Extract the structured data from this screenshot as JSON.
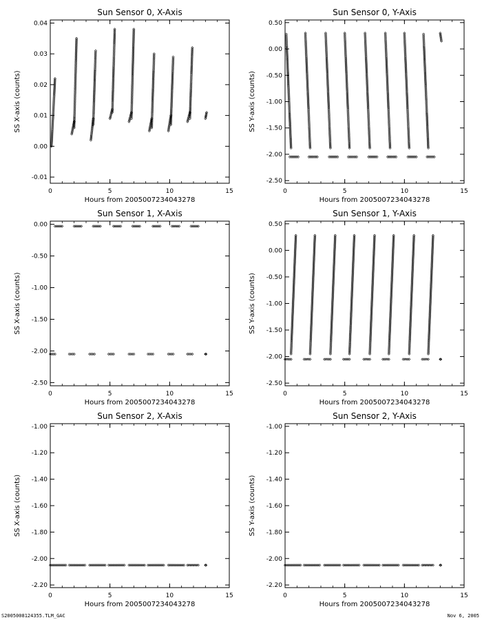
{
  "footer": {
    "left": "S2005008124355.TLM_GAC",
    "right": "Nov 6, 2005"
  },
  "chart_data": [
    {
      "type": "scatter",
      "title": "Sun Sensor 0, X-Axis",
      "xlabel": "Hours from 2005007234043278",
      "ylabel": "SS X-axis (counts)",
      "xlim": [
        0,
        15
      ],
      "ylim": [
        -0.012,
        0.041
      ],
      "xticks": [
        0,
        5,
        10,
        15
      ],
      "xtick_labels": [
        "0",
        "5",
        "10",
        "15"
      ],
      "yticks": [
        -0.01,
        0.0,
        0.01,
        0.02,
        0.03,
        0.04
      ],
      "ytick_labels": [
        "-0.01",
        "0.00",
        "0.01",
        "0.02",
        "0.03",
        "0.04"
      ],
      "grid": false,
      "segments": [
        {
          "x": [
            0.1,
            0.4
          ],
          "y": [
            0.0,
            0.022
          ]
        },
        {
          "x": [
            1.8,
            2.0
          ],
          "y": [
            0.004,
            0.008
          ]
        },
        {
          "x": [
            2.0,
            2.2
          ],
          "y": [
            0.006,
            0.035
          ]
        },
        {
          "x": [
            3.4,
            3.6
          ],
          "y": [
            0.002,
            0.009
          ]
        },
        {
          "x": [
            3.6,
            3.8
          ],
          "y": [
            0.007,
            0.031
          ]
        },
        {
          "x": [
            5.0,
            5.2
          ],
          "y": [
            0.009,
            0.012
          ]
        },
        {
          "x": [
            5.2,
            5.4
          ],
          "y": [
            0.011,
            0.038
          ]
        },
        {
          "x": [
            6.6,
            6.8
          ],
          "y": [
            0.008,
            0.011
          ]
        },
        {
          "x": [
            6.8,
            7.0
          ],
          "y": [
            0.009,
            0.038
          ]
        },
        {
          "x": [
            8.3,
            8.5
          ],
          "y": [
            0.005,
            0.009
          ]
        },
        {
          "x": [
            8.5,
            8.7
          ],
          "y": [
            0.006,
            0.03
          ]
        },
        {
          "x": [
            9.9,
            10.1
          ],
          "y": [
            0.005,
            0.01
          ]
        },
        {
          "x": [
            10.1,
            10.3
          ],
          "y": [
            0.007,
            0.029
          ]
        },
        {
          "x": [
            11.5,
            11.7
          ],
          "y": [
            0.008,
            0.011
          ]
        },
        {
          "x": [
            11.7,
            11.9
          ],
          "y": [
            0.009,
            0.032
          ]
        },
        {
          "x": [
            13.0,
            13.1
          ],
          "y": [
            0.009,
            0.011
          ]
        }
      ]
    },
    {
      "type": "scatter",
      "title": "Sun Sensor 0, Y-Axis",
      "xlabel": "Hours from 2005007234043278",
      "ylabel": "SS Y-axis (counts)",
      "xlim": [
        0,
        15
      ],
      "ylim": [
        -2.55,
        0.55
      ],
      "xticks": [
        0,
        5,
        10,
        15
      ],
      "xtick_labels": [
        "0",
        "5",
        "10",
        "15"
      ],
      "yticks": [
        -2.5,
        -2.0,
        -1.5,
        -1.0,
        -0.5,
        0.0,
        0.5
      ],
      "ytick_labels": [
        "-2.50",
        "-2.00",
        "-1.50",
        "-1.00",
        "-0.50",
        "0.00",
        "0.50"
      ],
      "grid": false,
      "segments": [
        {
          "x": [
            0.1,
            0.5
          ],
          "y": [
            0.28,
            -1.88
          ]
        },
        {
          "x": [
            1.7,
            2.1
          ],
          "y": [
            0.3,
            -1.88
          ]
        },
        {
          "x": [
            3.4,
            3.8
          ],
          "y": [
            0.3,
            -1.88
          ]
        },
        {
          "x": [
            5.0,
            5.4
          ],
          "y": [
            0.3,
            -1.88
          ]
        },
        {
          "x": [
            6.7,
            7.1
          ],
          "y": [
            0.3,
            -1.88
          ]
        },
        {
          "x": [
            8.4,
            8.8
          ],
          "y": [
            0.3,
            -1.88
          ]
        },
        {
          "x": [
            10.0,
            10.4
          ],
          "y": [
            0.3,
            -1.88
          ]
        },
        {
          "x": [
            11.6,
            12.0
          ],
          "y": [
            0.28,
            -1.88
          ]
        },
        {
          "x": [
            13.0,
            13.1
          ],
          "y": [
            0.3,
            0.15
          ]
        },
        {
          "x": [
            0.4,
            1.1
          ],
          "y": [
            -2.05,
            -2.05
          ]
        },
        {
          "x": [
            2.0,
            2.7
          ],
          "y": [
            -2.05,
            -2.05
          ]
        },
        {
          "x": [
            3.7,
            4.4
          ],
          "y": [
            -2.05,
            -2.05
          ]
        },
        {
          "x": [
            5.3,
            6.0
          ],
          "y": [
            -2.05,
            -2.05
          ]
        },
        {
          "x": [
            7.0,
            7.7
          ],
          "y": [
            -2.05,
            -2.05
          ]
        },
        {
          "x": [
            8.6,
            9.3
          ],
          "y": [
            -2.05,
            -2.05
          ]
        },
        {
          "x": [
            10.3,
            11.0
          ],
          "y": [
            -2.05,
            -2.05
          ]
        },
        {
          "x": [
            11.9,
            12.5
          ],
          "y": [
            -2.05,
            -2.05
          ]
        }
      ]
    },
    {
      "type": "scatter",
      "title": "Sun Sensor 1, X-Axis",
      "xlabel": "Hours from 2005007234043278",
      "ylabel": "SS X-axis (counts)",
      "xlim": [
        0,
        15
      ],
      "ylim": [
        -2.55,
        0.05
      ],
      "xticks": [
        0,
        5,
        10,
        15
      ],
      "xtick_labels": [
        "0",
        "5",
        "10",
        "15"
      ],
      "yticks": [
        -2.5,
        -2.0,
        -1.5,
        -1.0,
        -0.5,
        0.0
      ],
      "ytick_labels": [
        "-2.50",
        "-2.00",
        "-1.50",
        "-1.00",
        "-0.50",
        "0.00"
      ],
      "grid": false,
      "segments": [
        {
          "x": [
            0.4,
            1.0
          ],
          "y": [
            -0.03,
            -0.03
          ]
        },
        {
          "x": [
            2.0,
            2.6
          ],
          "y": [
            -0.03,
            -0.03
          ]
        },
        {
          "x": [
            3.6,
            4.2
          ],
          "y": [
            -0.03,
            -0.03
          ]
        },
        {
          "x": [
            5.3,
            5.9
          ],
          "y": [
            -0.03,
            -0.03
          ]
        },
        {
          "x": [
            6.9,
            7.5
          ],
          "y": [
            -0.03,
            -0.03
          ]
        },
        {
          "x": [
            8.6,
            9.2
          ],
          "y": [
            -0.03,
            -0.03
          ]
        },
        {
          "x": [
            10.2,
            10.8
          ],
          "y": [
            -0.03,
            -0.03
          ]
        },
        {
          "x": [
            11.8,
            12.4
          ],
          "y": [
            -0.03,
            -0.03
          ]
        },
        {
          "x": [
            0.0,
            0.4
          ],
          "y": [
            -2.05,
            -2.05
          ]
        },
        {
          "x": [
            1.6,
            2.0
          ],
          "y": [
            -2.05,
            -2.05
          ]
        },
        {
          "x": [
            3.3,
            3.7
          ],
          "y": [
            -2.05,
            -2.05
          ]
        },
        {
          "x": [
            4.9,
            5.3
          ],
          "y": [
            -2.05,
            -2.05
          ]
        },
        {
          "x": [
            6.6,
            7.0
          ],
          "y": [
            -2.05,
            -2.05
          ]
        },
        {
          "x": [
            8.2,
            8.6
          ],
          "y": [
            -2.05,
            -2.05
          ]
        },
        {
          "x": [
            9.9,
            10.3
          ],
          "y": [
            -2.05,
            -2.05
          ]
        },
        {
          "x": [
            11.5,
            11.9
          ],
          "y": [
            -2.05,
            -2.05
          ]
        },
        {
          "x": [
            13.0,
            13.05
          ],
          "y": [
            -2.05,
            -2.05
          ]
        }
      ]
    },
    {
      "type": "scatter",
      "title": "Sun Sensor 1, Y-Axis",
      "xlabel": "Hours from 2005007234043278",
      "ylabel": "SS Y-axis (counts)",
      "xlim": [
        0,
        15
      ],
      "ylim": [
        -2.55,
        0.55
      ],
      "xticks": [
        0,
        5,
        10,
        15
      ],
      "xtick_labels": [
        "0",
        "5",
        "10",
        "15"
      ],
      "yticks": [
        -2.5,
        -2.0,
        -1.5,
        -1.0,
        -0.5,
        0.0,
        0.5
      ],
      "ytick_labels": [
        "-2.50",
        "-2.00",
        "-1.50",
        "-1.00",
        "-0.50",
        "0.00",
        "0.50"
      ],
      "grid": false,
      "segments": [
        {
          "x": [
            0.5,
            0.9
          ],
          "y": [
            -1.95,
            0.28
          ]
        },
        {
          "x": [
            2.1,
            2.5
          ],
          "y": [
            -1.95,
            0.28
          ]
        },
        {
          "x": [
            3.8,
            4.2
          ],
          "y": [
            -1.95,
            0.28
          ]
        },
        {
          "x": [
            5.4,
            5.8
          ],
          "y": [
            -1.95,
            0.28
          ]
        },
        {
          "x": [
            7.1,
            7.5
          ],
          "y": [
            -1.95,
            0.28
          ]
        },
        {
          "x": [
            8.7,
            9.1
          ],
          "y": [
            -1.95,
            0.28
          ]
        },
        {
          "x": [
            10.4,
            10.8
          ],
          "y": [
            -1.95,
            0.28
          ]
        },
        {
          "x": [
            12.0,
            12.4
          ],
          "y": [
            -1.95,
            0.28
          ]
        },
        {
          "x": [
            0.0,
            0.5
          ],
          "y": [
            -2.05,
            -2.05
          ]
        },
        {
          "x": [
            1.6,
            2.1
          ],
          "y": [
            -2.05,
            -2.05
          ]
        },
        {
          "x": [
            3.3,
            3.8
          ],
          "y": [
            -2.05,
            -2.05
          ]
        },
        {
          "x": [
            4.9,
            5.4
          ],
          "y": [
            -2.05,
            -2.05
          ]
        },
        {
          "x": [
            6.6,
            7.1
          ],
          "y": [
            -2.05,
            -2.05
          ]
        },
        {
          "x": [
            8.2,
            8.7
          ],
          "y": [
            -2.05,
            -2.05
          ]
        },
        {
          "x": [
            9.9,
            10.4
          ],
          "y": [
            -2.05,
            -2.05
          ]
        },
        {
          "x": [
            11.5,
            12.0
          ],
          "y": [
            -2.05,
            -2.05
          ]
        },
        {
          "x": [
            13.0,
            13.05
          ],
          "y": [
            -2.05,
            -2.05
          ]
        }
      ]
    },
    {
      "type": "scatter",
      "title": "Sun Sensor 2, X-Axis",
      "xlabel": "Hours from 2005007234043278",
      "ylabel": "SS X-axis (counts)",
      "xlim": [
        0,
        15
      ],
      "ylim": [
        -2.22,
        -0.98
      ],
      "xticks": [
        0,
        5,
        10,
        15
      ],
      "xtick_labels": [
        "0",
        "5",
        "10",
        "15"
      ],
      "yticks": [
        -2.2,
        -2.0,
        -1.8,
        -1.6,
        -1.4,
        -1.2,
        -1.0
      ],
      "ytick_labels": [
        "-2.20",
        "-2.00",
        "-1.80",
        "-1.60",
        "-1.40",
        "-1.20",
        "-1.00"
      ],
      "grid": false,
      "segments": [
        {
          "x": [
            0.0,
            1.3
          ],
          "y": [
            -2.05,
            -2.05
          ]
        },
        {
          "x": [
            1.6,
            2.9
          ],
          "y": [
            -2.05,
            -2.05
          ]
        },
        {
          "x": [
            3.3,
            4.6
          ],
          "y": [
            -2.05,
            -2.05
          ]
        },
        {
          "x": [
            4.9,
            6.2
          ],
          "y": [
            -2.05,
            -2.05
          ]
        },
        {
          "x": [
            6.6,
            7.9
          ],
          "y": [
            -2.05,
            -2.05
          ]
        },
        {
          "x": [
            8.2,
            9.5
          ],
          "y": [
            -2.05,
            -2.05
          ]
        },
        {
          "x": [
            9.9,
            11.2
          ],
          "y": [
            -2.05,
            -2.05
          ]
        },
        {
          "x": [
            11.5,
            12.4
          ],
          "y": [
            -2.05,
            -2.05
          ]
        },
        {
          "x": [
            13.0,
            13.05
          ],
          "y": [
            -2.05,
            -2.05
          ]
        }
      ]
    },
    {
      "type": "scatter",
      "title": "Sun Sensor 2, Y-Axis",
      "xlabel": "Hours from 2005007234043278",
      "ylabel": "SS Y-axis (counts)",
      "xlim": [
        0,
        15
      ],
      "ylim": [
        -2.22,
        -0.98
      ],
      "xticks": [
        0,
        5,
        10,
        15
      ],
      "xtick_labels": [
        "0",
        "5",
        "10",
        "15"
      ],
      "yticks": [
        -2.2,
        -2.0,
        -1.8,
        -1.6,
        -1.4,
        -1.2,
        -1.0
      ],
      "ytick_labels": [
        "-2.20",
        "-2.00",
        "-1.80",
        "-1.60",
        "-1.40",
        "-1.20",
        "-1.00"
      ],
      "grid": false,
      "segments": [
        {
          "x": [
            0.0,
            1.3
          ],
          "y": [
            -2.05,
            -2.05
          ]
        },
        {
          "x": [
            1.6,
            2.9
          ],
          "y": [
            -2.05,
            -2.05
          ]
        },
        {
          "x": [
            3.3,
            4.6
          ],
          "y": [
            -2.05,
            -2.05
          ]
        },
        {
          "x": [
            4.9,
            6.2
          ],
          "y": [
            -2.05,
            -2.05
          ]
        },
        {
          "x": [
            6.6,
            7.9
          ],
          "y": [
            -2.05,
            -2.05
          ]
        },
        {
          "x": [
            8.2,
            9.5
          ],
          "y": [
            -2.05,
            -2.05
          ]
        },
        {
          "x": [
            9.9,
            11.2
          ],
          "y": [
            -2.05,
            -2.05
          ]
        },
        {
          "x": [
            11.5,
            12.4
          ],
          "y": [
            -2.05,
            -2.05
          ]
        },
        {
          "x": [
            13.0,
            13.05
          ],
          "y": [
            -2.05,
            -2.05
          ]
        }
      ]
    }
  ]
}
